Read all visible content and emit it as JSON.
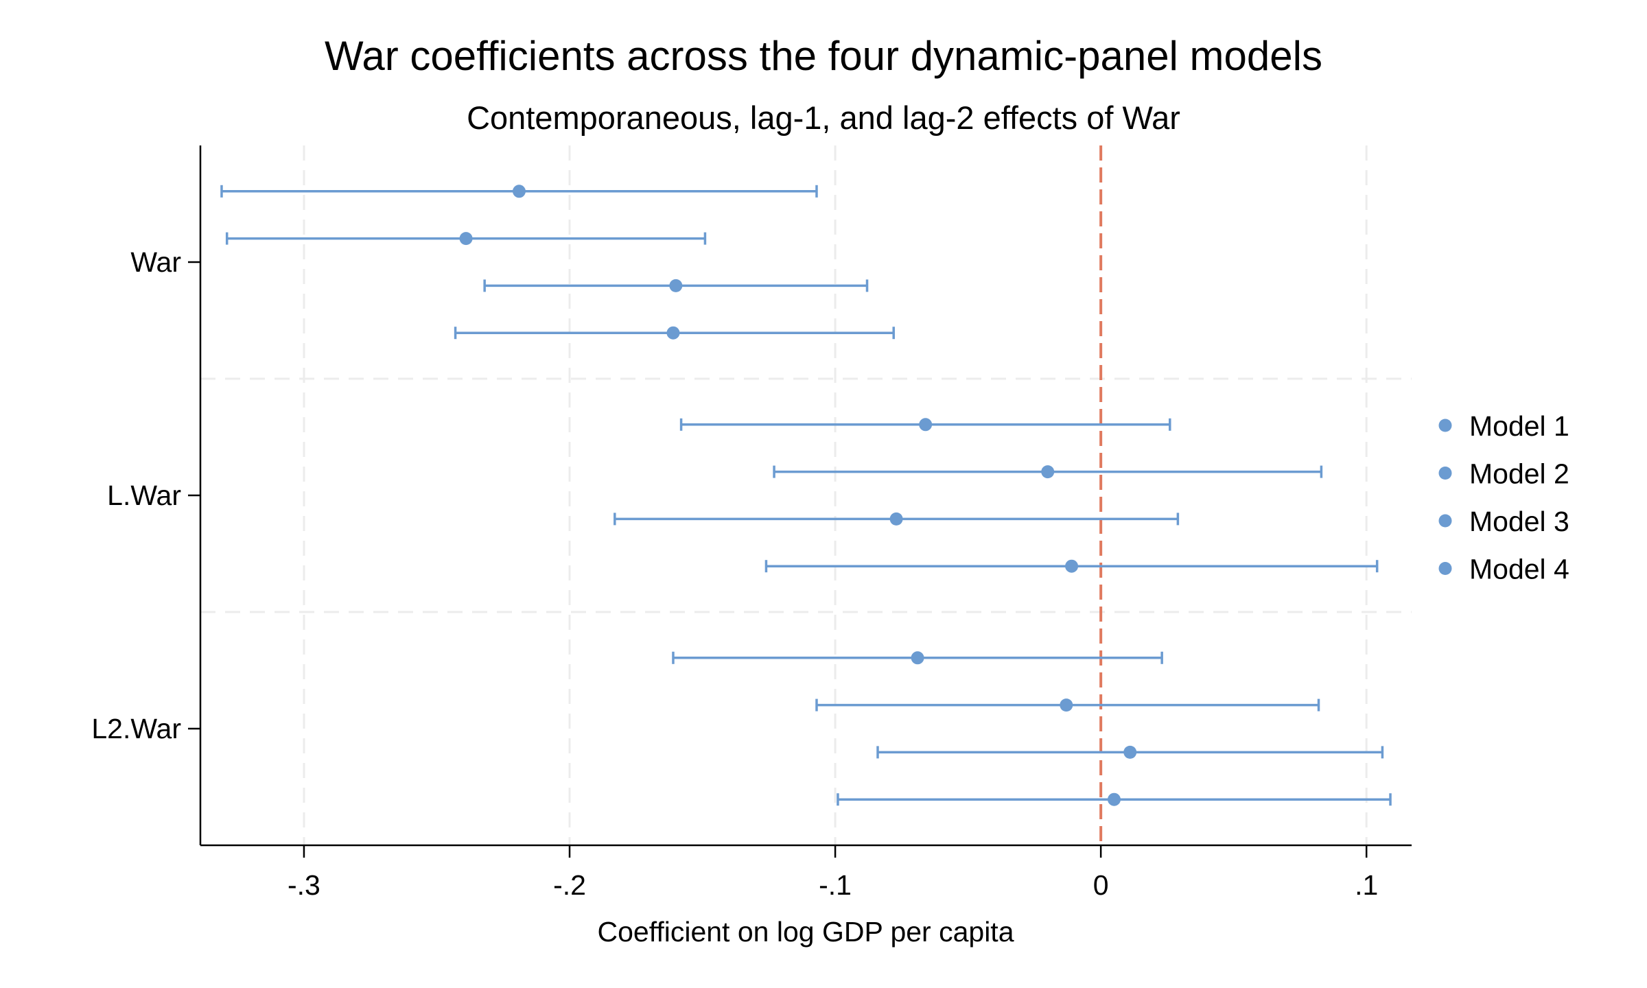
{
  "chart_data": {
    "type": "scatter",
    "subtype": "coefficient-plot-with-confidence-intervals",
    "title": "War coefficients across the four dynamic-panel models",
    "subtitle": "Contemporaneous, lag-1, and lag-2 effects of War",
    "xlabel": "Coefficient on log GDP per capita",
    "ylabel": "",
    "xlim": [
      -0.339,
      0.117
    ],
    "xticks": [
      -0.3,
      -0.2,
      -0.1,
      0,
      0.1
    ],
    "xtick_labels": [
      "-.3",
      "-.2",
      "-.1",
      "0",
      ".1"
    ],
    "categories": [
      "War",
      "L.War",
      "L2.War"
    ],
    "reference_line": {
      "x": 0,
      "color": "#e07a5f",
      "style": "dashed"
    },
    "grid": true,
    "legend_position": "right",
    "marker_color": "#6b9bd1",
    "series": [
      {
        "name": "Model 1",
        "estimates": [
          -0.219,
          -0.066,
          -0.069
        ],
        "ci_low": [
          -0.331,
          -0.158,
          -0.161
        ],
        "ci_high": [
          -0.107,
          0.026,
          0.023
        ]
      },
      {
        "name": "Model 2",
        "estimates": [
          -0.239,
          -0.02,
          -0.013
        ],
        "ci_low": [
          -0.329,
          -0.123,
          -0.107
        ],
        "ci_high": [
          -0.149,
          0.083,
          0.082
        ]
      },
      {
        "name": "Model 3",
        "estimates": [
          -0.16,
          -0.077,
          0.011
        ],
        "ci_low": [
          -0.232,
          -0.183,
          -0.084
        ],
        "ci_high": [
          -0.088,
          0.029,
          0.106
        ]
      },
      {
        "name": "Model 4",
        "estimates": [
          -0.161,
          -0.011,
          0.005
        ],
        "ci_low": [
          -0.243,
          -0.126,
          -0.099
        ],
        "ci_high": [
          -0.078,
          0.104,
          0.109
        ]
      }
    ]
  }
}
